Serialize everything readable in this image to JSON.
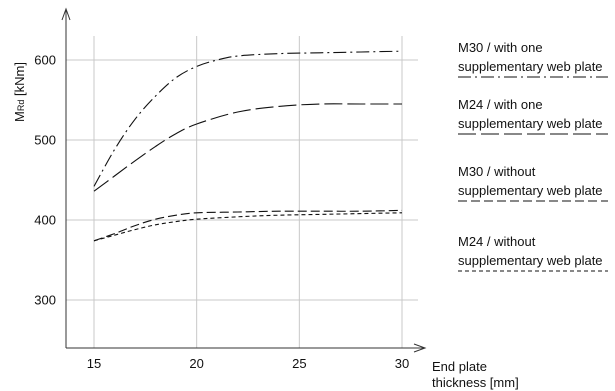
{
  "chart_data": {
    "type": "line",
    "ylabel_main": "M",
    "ylabel_sub": "Rd",
    "ylabel_rest": " [kNm]",
    "xlabel_line1": "End plate",
    "xlabel_line2": "thickness [mm]",
    "xlim": [
      15,
      30
    ],
    "ylim": [
      300,
      600
    ],
    "x_ticks": [
      15,
      20,
      25,
      30
    ],
    "y_ticks": [
      300,
      400,
      500,
      600
    ],
    "grid": true,
    "legend_placement": "right",
    "series": [
      {
        "name_line1": "M30 / with one",
        "name_line2": "supplementary web plate",
        "dash": "long-dash-dot",
        "x": [
          15,
          16,
          17,
          18,
          19,
          20,
          21,
          22,
          24,
          26,
          28,
          30
        ],
        "y": [
          442,
          488,
          526,
          555,
          578,
          592,
          600,
          605,
          608,
          609,
          610,
          611
        ]
      },
      {
        "name_line1": "M24 / with one",
        "name_line2": "supplementary web plate",
        "dash": "long-dash",
        "x": [
          15,
          16,
          17,
          18,
          19,
          20,
          22,
          24,
          26,
          28,
          30
        ],
        "y": [
          436,
          455,
          474,
          492,
          508,
          520,
          535,
          542,
          545,
          545,
          545
        ]
      },
      {
        "name_line1": "M30 / without",
        "name_line2": "supplementary web plate",
        "dash": "medium-dash",
        "x": [
          15,
          16,
          17,
          18,
          19,
          20,
          22,
          24,
          26,
          28,
          30
        ],
        "y": [
          374,
          383,
          393,
          401,
          406,
          409,
          410,
          411,
          411,
          411,
          412
        ]
      },
      {
        "name_line1": "M24 / without",
        "name_line2": "supplementary web plate",
        "dash": "short-dash",
        "x": [
          15,
          16,
          17,
          18,
          19,
          20,
          22,
          24,
          26,
          28,
          30
        ],
        "y": [
          374,
          381,
          388,
          394,
          398,
          401,
          404,
          406,
          407,
          408,
          409
        ]
      }
    ]
  }
}
